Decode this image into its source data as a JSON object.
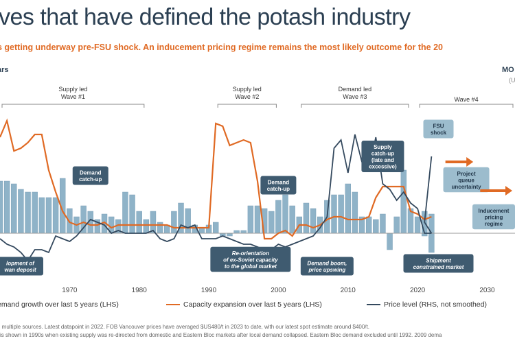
{
  "header": {
    "title": "ves that have defined the potash industry",
    "subtitle": "s getting underway pre-FSU shock. An inducement pricing regime remains the most likely outcome for the 20",
    "left_axis_label": "ars",
    "right_axis_label": "MO",
    "right_axis_sub": "(U"
  },
  "chart_data": {
    "type": "bar",
    "x_range": [
      1960,
      2034
    ],
    "x_ticks": [
      1970,
      1980,
      1990,
      2000,
      2010,
      2020,
      2030
    ],
    "years_bars": [
      1960,
      1961,
      1962,
      1963,
      1964,
      1965,
      1966,
      1967,
      1968,
      1969,
      1970,
      1971,
      1972,
      1973,
      1974,
      1975,
      1976,
      1977,
      1978,
      1979,
      1980,
      1981,
      1982,
      1983,
      1984,
      1985,
      1986,
      1987,
      1988,
      1989,
      1990,
      1991,
      1992,
      1993,
      1994,
      1995,
      1996,
      1997,
      1998,
      1999,
      2000,
      2001,
      2002,
      2003,
      2004,
      2005,
      2006,
      2007,
      2008,
      2009,
      2010,
      2011,
      2012,
      2013,
      2014,
      2015,
      2016,
      2017,
      2018,
      2019,
      2020,
      2021,
      2022
    ],
    "demand_growth_lhs": [
      1.9,
      1.9,
      1.8,
      1.6,
      1.5,
      1.5,
      1.3,
      1.3,
      1.3,
      2.0,
      0.9,
      0.6,
      1.0,
      0.8,
      0.5,
      0.7,
      0.6,
      0.5,
      1.5,
      1.4,
      0.8,
      0.5,
      0.8,
      0.4,
      0.3,
      0.8,
      1.1,
      0.9,
      0.3,
      0.2,
      0.3,
      0.4,
      -0.1,
      -0.1,
      0.1,
      0.1,
      1.0,
      1.0,
      0.9,
      0.8,
      1.2,
      1.4,
      1.0,
      0.6,
      1.1,
      0.9,
      0.6,
      1.2,
      1.4,
      1.4,
      1.8,
      1.5,
      0.6,
      0.6,
      0.5,
      0.7,
      -0.6,
      0.6,
      1.3,
      0.9,
      0.6,
      0.8,
      0.7
    ],
    "secondary_bars": [
      {
        "year": 2018,
        "value": 2.3
      },
      {
        "year": 2021,
        "value": -0.1
      },
      {
        "year": 2022,
        "value": -0.7
      }
    ],
    "capacity_years": [
      1960,
      1961,
      1962,
      1963,
      1964,
      1965,
      1966,
      1967,
      1968,
      1969,
      1970,
      1971,
      1972,
      1973,
      1974,
      1975,
      1976,
      1977,
      1978,
      1979,
      1980,
      1981,
      1982,
      1983,
      1984,
      1985,
      1986,
      1987,
      1988,
      1989,
      1990,
      1991,
      1992,
      1993,
      1994,
      1995,
      1996,
      1997,
      1998,
      1999,
      2000,
      2001,
      2002,
      2003,
      2004,
      2005,
      2006,
      2007,
      2008,
      2009,
      2010,
      2011,
      2012,
      2013,
      2014,
      2015,
      2016,
      2017,
      2018,
      2019,
      2020,
      2021,
      2022
    ],
    "capacity_expansion_lhs": [
      3.5,
      4.1,
      3.0,
      3.1,
      3.3,
      3.6,
      3.6,
      2.3,
      1.5,
      0.8,
      0.4,
      0.3,
      0.4,
      0.3,
      0.3,
      0.4,
      0.2,
      0.3,
      0.3,
      0.3,
      0.3,
      0.3,
      0.3,
      0.3,
      0.3,
      0.2,
      0.2,
      0.2,
      0.2,
      0.2,
      0.2,
      4.0,
      3.9,
      3.2,
      3.3,
      3.4,
      3.3,
      1.9,
      -0.2,
      -0.2,
      0.0,
      0.1,
      -0.1,
      0.3,
      0.3,
      0.2,
      0.3,
      0.5,
      0.6,
      0.6,
      0.5,
      0.5,
      0.5,
      0.6,
      1.3,
      1.7,
      1.7,
      1.7,
      1.7,
      0.8,
      0.7,
      0.5,
      0.6
    ],
    "price_years": [
      1960,
      1961,
      1962,
      1963,
      1964,
      1965,
      1966,
      1967,
      1968,
      1969,
      1970,
      1971,
      1972,
      1973,
      1974,
      1975,
      1976,
      1977,
      1978,
      1979,
      1980,
      1981,
      1982,
      1983,
      1984,
      1985,
      1986,
      1987,
      1988,
      1989,
      1990,
      1991,
      1992,
      1993,
      1994,
      1995,
      1996,
      1997,
      1998,
      1999,
      2000,
      2001,
      2002,
      2003,
      2004,
      2005,
      2006,
      2007,
      2008,
      2009,
      2010,
      2011,
      2012,
      2013,
      2014,
      2015,
      2016,
      2017,
      2018,
      2019,
      2020,
      2021,
      2022
    ],
    "price_level_rhs": [
      -0.2,
      -0.4,
      -0.5,
      -0.7,
      -1.0,
      -0.6,
      -0.6,
      -0.7,
      -0.1,
      -0.2,
      -0.3,
      -0.1,
      0.2,
      0.5,
      0.4,
      0.3,
      0.0,
      0.1,
      0.0,
      0.0,
      0.0,
      0.0,
      0.1,
      -0.2,
      -0.3,
      -0.2,
      0.3,
      0.2,
      0.3,
      -0.2,
      -0.2,
      -0.2,
      -0.1,
      -0.2,
      -0.3,
      -0.4,
      -0.4,
      -0.5,
      -0.6,
      -0.6,
      -0.4,
      -0.5,
      -0.4,
      -0.3,
      -0.2,
      -0.1,
      0.2,
      0.6,
      3.1,
      3.4,
      2.2,
      3.6,
      2.6,
      2.3,
      3.5,
      1.8,
      1.6,
      1.2,
      1.5,
      1.1,
      0.9,
      0.0,
      0.0
    ],
    "price_tail": [
      {
        "year": 2021,
        "value": 0.4
      },
      {
        "year": 2022,
        "value": 2.8
      }
    ],
    "wave_brackets": [
      {
        "label": "Supply led\nWave #1",
        "start": 1960,
        "end": 1981
      },
      {
        "label": "Supply led\nWave #2",
        "start": 1991,
        "end": 2000
      },
      {
        "label": "Demand led\nWave #3",
        "start": 2003,
        "end": 2019
      },
      {
        "label": "Wave #4",
        "start": 2020,
        "end": 2034
      }
    ],
    "annotations": [
      {
        "text": "Demand\ncatch-up",
        "year": 1973,
        "value": 2.1,
        "style": "dark"
      },
      {
        "text": "Demand\ncatch-up",
        "year": 2000,
        "value": 1.75,
        "style": "dark"
      },
      {
        "text": "Supply\ncatch-up\n(late and\nexcessive)",
        "year": 2015,
        "value": 2.8,
        "style": "dark"
      },
      {
        "text": "FSU\nshock",
        "year": 2023,
        "value": 3.8,
        "style": "light"
      },
      {
        "text": "Project\nqueue\nuncertainty",
        "year": 2027,
        "value": 1.95,
        "style": "light"
      },
      {
        "text": "Inducement\npricing\nregime",
        "year": 2031,
        "value": 0.6,
        "style": "light"
      },
      {
        "text": "lopment of\nwan deposit",
        "year": 1962,
        "value": -1.2,
        "style": "dark-italic"
      },
      {
        "text": "Re-orientation\nof ex-Soviet capacity\nto the global market",
        "year": 1996,
        "value": -0.95,
        "style": "dark-italic"
      },
      {
        "text": "Demand boom,\nprice upswing",
        "year": 2007,
        "value": -1.2,
        "style": "dark-italic"
      },
      {
        "text": "Shipment\nconstrained market",
        "year": 2023,
        "value": -1.1,
        "style": "dark-italic"
      }
    ],
    "arrows": [
      {
        "year_start": 2024,
        "year_end": 2028,
        "value": 2.6
      },
      {
        "year_start": 2029,
        "year_end": 2034,
        "value": 1.55
      }
    ],
    "legend": [
      {
        "label": "emand growth over last 5 years (LHS)",
        "color": "#8fb3c8"
      },
      {
        "label": "Capacity expansion over last 5 years (LHS)",
        "color": "#e06a24"
      },
      {
        "label": "Price level (RHS, not smoothed)",
        "color": "#34495e"
      }
    ],
    "y_zero": 0,
    "ylim": [
      -1.7,
      4.6
    ]
  },
  "footnotes": [
    "n multiple sources. Latest datapoint in 2022. FOB Vancouver prices have averaged $US480/t in 2023 to date, with our latest spot estimate around $400/t.",
    "l is shown in 1990s when existing supply was re-directed from domestic and Eastern Bloc markets after local demand collapsed. Eastern Bloc demand excluded until 1992. 2009 dema"
  ],
  "colors": {
    "bar": "#8fb3c8",
    "bar_stroke": "#7aa0b8",
    "capacity": "#e06a24",
    "price": "#34495e",
    "dark_box": "#3f5b70",
    "light_box": "#9cbccd",
    "bracket": "#888888"
  }
}
